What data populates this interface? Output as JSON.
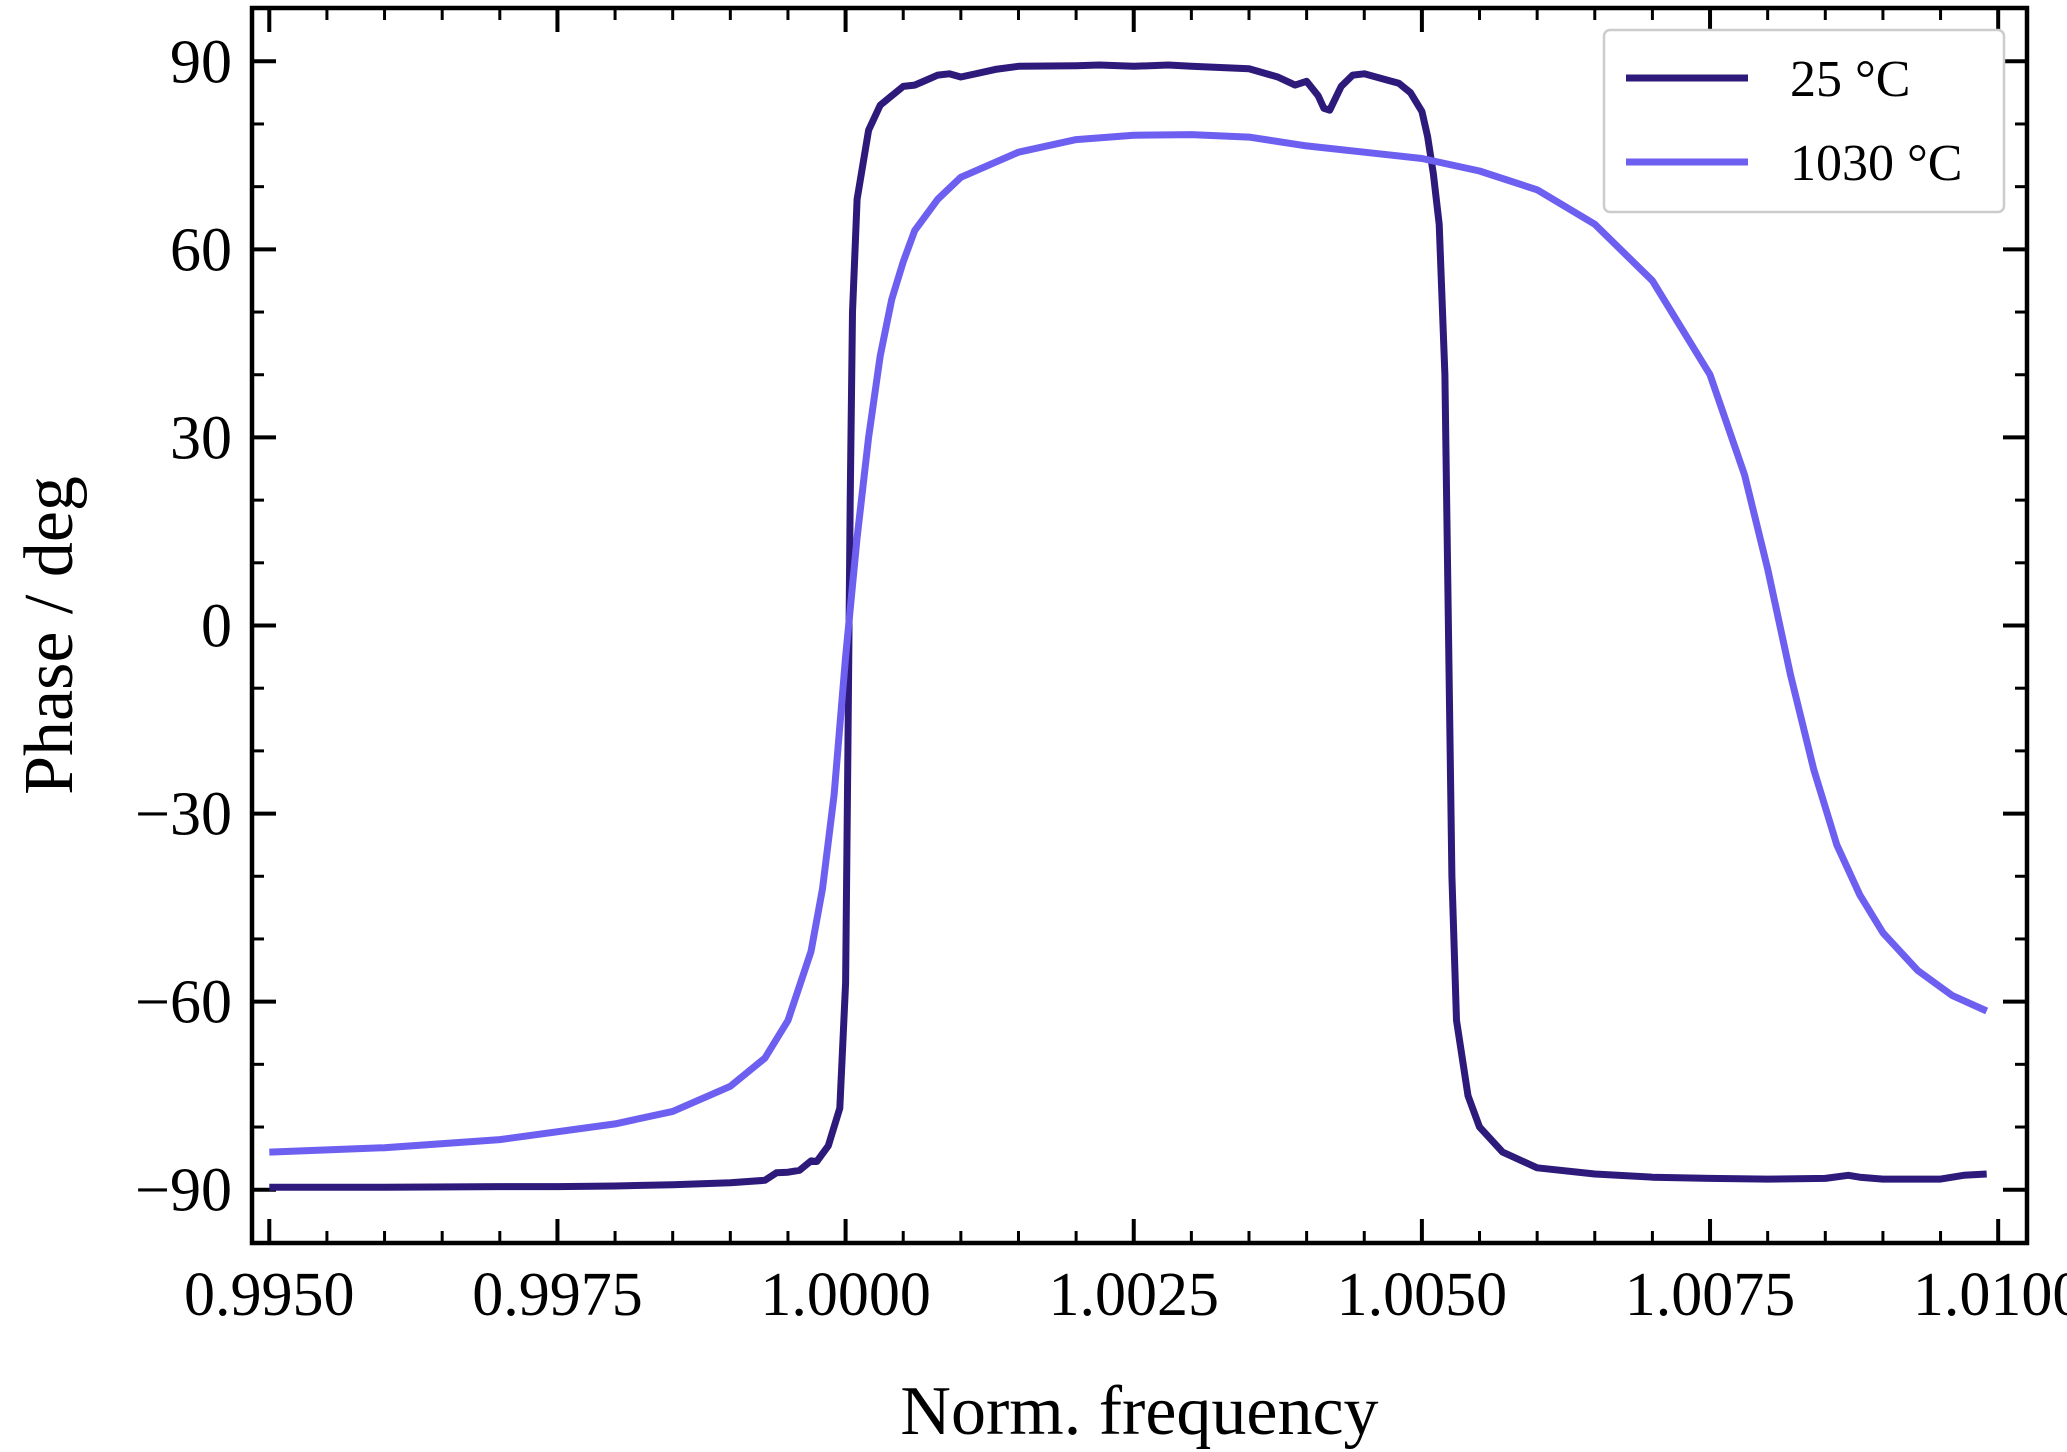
{
  "chart_data": {
    "type": "line",
    "xlabel": "Norm. frequency",
    "ylabel": "Phase / deg",
    "xlim": [
      0.99485,
      1.01025
    ],
    "ylim": [
      -98.5,
      98.5
    ],
    "x_ticks": [
      0.995,
      0.9975,
      1.0,
      1.0025,
      1.005,
      1.0075,
      1.01
    ],
    "x_tick_labels": [
      "0.9950",
      "0.9975",
      "1.0000",
      "1.0025",
      "1.0050",
      "1.0075",
      "1.0100"
    ],
    "y_ticks": [
      -90,
      -60,
      -30,
      0,
      30,
      60,
      90
    ],
    "y_tick_labels": [
      "−90",
      "−60",
      "−30",
      "0",
      "30",
      "60",
      "90"
    ],
    "grid": false,
    "legend_position": "top-right",
    "series": [
      {
        "name": "25 °C",
        "color": "#2e1a7a",
        "points": [
          [
            0.995,
            -89.6
          ],
          [
            0.996,
            -89.6
          ],
          [
            0.997,
            -89.5
          ],
          [
            0.9975,
            -89.5
          ],
          [
            0.998,
            -89.4
          ],
          [
            0.9985,
            -89.2
          ],
          [
            0.999,
            -88.9
          ],
          [
            0.9993,
            -88.5
          ],
          [
            0.9994,
            -87.3
          ],
          [
            0.9995,
            -87.2
          ],
          [
            0.9996,
            -86.9
          ],
          [
            0.9997,
            -85.4
          ],
          [
            0.99975,
            -85.5
          ],
          [
            0.99985,
            -83.0
          ],
          [
            0.99995,
            -77.0
          ],
          [
            0.99998,
            -65.0
          ],
          [
            1.0,
            -57.0
          ],
          [
            1.00002,
            -20.0
          ],
          [
            1.00004,
            20.0
          ],
          [
            1.00006,
            50.0
          ],
          [
            1.0001,
            68.0
          ],
          [
            1.0002,
            79.0
          ],
          [
            1.0003,
            83.0
          ],
          [
            1.0005,
            86.0
          ],
          [
            1.0006,
            86.2
          ],
          [
            1.0007,
            87.0
          ],
          [
            1.0008,
            87.8
          ],
          [
            1.0009,
            88.0
          ],
          [
            1.001,
            87.5
          ],
          [
            1.0011,
            87.9
          ],
          [
            1.0013,
            88.7
          ],
          [
            1.0015,
            89.2
          ],
          [
            1.002,
            89.3
          ],
          [
            1.0022,
            89.4
          ],
          [
            1.0025,
            89.2
          ],
          [
            1.0028,
            89.4
          ],
          [
            1.003,
            89.2
          ],
          [
            1.0035,
            88.8
          ],
          [
            1.00375,
            87.5
          ],
          [
            1.0039,
            86.2
          ],
          [
            1.004,
            86.8
          ],
          [
            1.0041,
            84.5
          ],
          [
            1.00415,
            82.5
          ],
          [
            1.0042,
            82.2
          ],
          [
            1.0043,
            86.0
          ],
          [
            1.0044,
            87.8
          ],
          [
            1.0045,
            88.0
          ],
          [
            1.0047,
            87.0
          ],
          [
            1.0048,
            86.5
          ],
          [
            1.0049,
            85.0
          ],
          [
            1.005,
            82.0
          ],
          [
            1.00505,
            78.0
          ],
          [
            1.0051,
            72.0
          ],
          [
            1.00515,
            64.0
          ],
          [
            1.0052,
            40.0
          ],
          [
            1.00523,
            0.0
          ],
          [
            1.00526,
            -40.0
          ],
          [
            1.0053,
            -63.0
          ],
          [
            1.0054,
            -75.0
          ],
          [
            1.0055,
            -80.0
          ],
          [
            1.0057,
            -84.0
          ],
          [
            1.006,
            -86.5
          ],
          [
            1.0065,
            -87.5
          ],
          [
            1.007,
            -88.0
          ],
          [
            1.0075,
            -88.2
          ],
          [
            1.008,
            -88.3
          ],
          [
            1.0085,
            -88.2
          ],
          [
            1.0087,
            -87.7
          ],
          [
            1.0088,
            -88.0
          ],
          [
            1.009,
            -88.3
          ],
          [
            1.0095,
            -88.3
          ],
          [
            1.0097,
            -87.7
          ],
          [
            1.0099,
            -87.5
          ]
        ]
      },
      {
        "name": "1030 °C",
        "color": "#6d5ff0",
        "points": [
          [
            0.995,
            -84.0
          ],
          [
            0.996,
            -83.3
          ],
          [
            0.997,
            -82.0
          ],
          [
            0.998,
            -79.5
          ],
          [
            0.9985,
            -77.5
          ],
          [
            0.999,
            -73.5
          ],
          [
            0.9993,
            -69.0
          ],
          [
            0.9995,
            -63.0
          ],
          [
            0.9997,
            -52.0
          ],
          [
            0.9998,
            -42.0
          ],
          [
            0.9999,
            -27.0
          ],
          [
            1.0,
            -5.0
          ],
          [
            1.0001,
            14.0
          ],
          [
            1.0002,
            30.0
          ],
          [
            1.0003,
            43.0
          ],
          [
            1.0004,
            52.0
          ],
          [
            1.0005,
            58.0
          ],
          [
            1.0006,
            63.0
          ],
          [
            1.0008,
            68.0
          ],
          [
            1.001,
            71.5
          ],
          [
            1.0015,
            75.5
          ],
          [
            1.002,
            77.5
          ],
          [
            1.0025,
            78.2
          ],
          [
            1.003,
            78.3
          ],
          [
            1.0035,
            77.9
          ],
          [
            1.004,
            76.5
          ],
          [
            1.0045,
            75.5
          ],
          [
            1.005,
            74.5
          ],
          [
            1.0055,
            72.5
          ],
          [
            1.006,
            69.5
          ],
          [
            1.0065,
            64.0
          ],
          [
            1.007,
            55.0
          ],
          [
            1.0075,
            40.0
          ],
          [
            1.0078,
            24.0
          ],
          [
            1.008,
            9.0
          ],
          [
            1.0082,
            -8.0
          ],
          [
            1.0084,
            -23.0
          ],
          [
            1.0086,
            -35.0
          ],
          [
            1.0088,
            -43.0
          ],
          [
            1.009,
            -49.0
          ],
          [
            1.0093,
            -55.0
          ],
          [
            1.0096,
            -59.0
          ],
          [
            1.0099,
            -61.5
          ]
        ]
      }
    ]
  }
}
